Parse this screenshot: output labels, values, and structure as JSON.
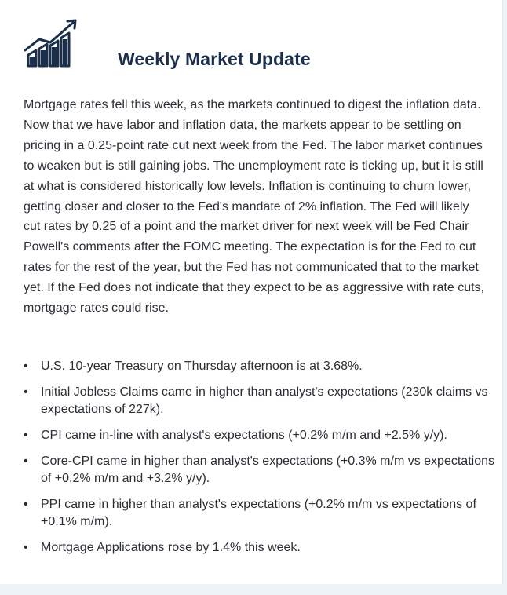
{
  "header": {
    "logo_icon": "rising-bar-chart-icon",
    "title": "Weekly Market Update"
  },
  "body": {
    "paragraph": "Mortgage rates fell this week, as the markets continued to digest the inflation data. Now that we have labor and inflation data, the markets appear to be settling on pricing in a 0.25-point rate cut next week from the Fed. The labor market continues to weaken but is still gaining jobs. The unemployment rate is ticking up, but it is still at what is considered historically low levels. Inflation is continuing to churn lower, getting closer and closer to the Fed's mandate of 2% inflation. The Fed will likely cut rates by 0.25 of a point and the market driver for next week will be Fed Chair Powell's comments after the FOMC meeting. The expectation is for the Fed to cut rates for the rest of the year, but the Fed has not communicated that to the market yet. If the Fed does not indicate that they expect to be as aggressive with rate cuts, mortgage rates could rise.",
    "bullets": [
      "U.S. 10-year Treasury on Thursday afternoon is at 3.68%.",
      "Initial Jobless Claims came in higher than analyst's expectations (230k claims vs expectations of 227k).",
      "CPI came in-line with analyst's expectations (+0.2% m/m and +2.5% y/y).",
      "Core-CPI came in higher than analyst's expectations (+0.3% m/m vs expectations of +0.2% m/m and +3.2% y/y).",
      "PPI came in higher than analyst's expectations (+0.2% m/m vs expectations of +0.1% m/m).",
      "Mortgage Applications rose by 1.4% this week."
    ],
    "bullet_glyph": "•"
  },
  "colors": {
    "title": "#1b2f4b",
    "text": "#2a2f35",
    "logo": "#1b2f4b"
  }
}
